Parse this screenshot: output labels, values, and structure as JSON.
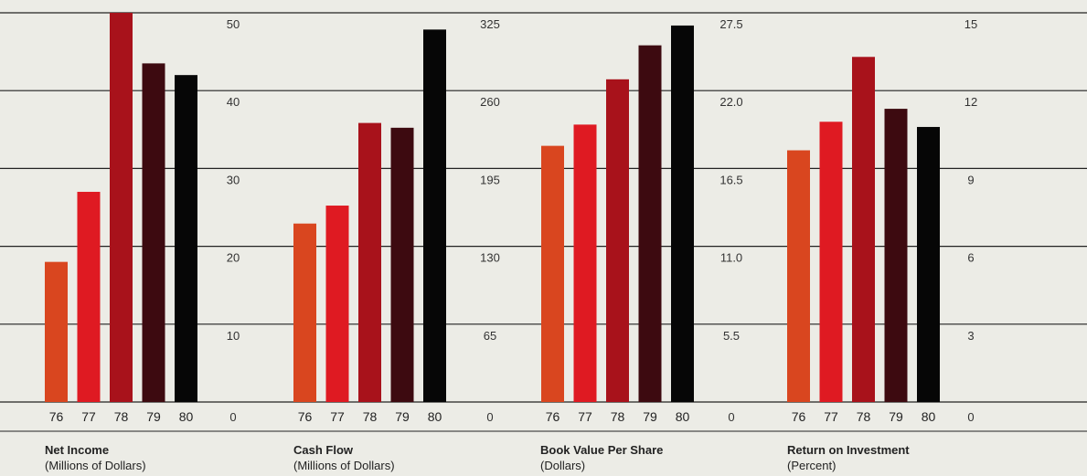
{
  "colors": {
    "background": "#ecece6",
    "gridline": "#222222",
    "year_colors": [
      "#d9461f",
      "#df1a22",
      "#a8121b",
      "#3d0a10",
      "#060606"
    ]
  },
  "chart_data": [
    {
      "type": "bar",
      "title": "Net Income",
      "subtitle": "(Millions of Dollars)",
      "categories": [
        "76",
        "77",
        "78",
        "79",
        "80"
      ],
      "values": [
        18,
        27,
        50,
        43.5,
        42
      ],
      "yticks": [
        "0",
        "10",
        "20",
        "30",
        "40",
        "50"
      ],
      "ylim": [
        0,
        50
      ]
    },
    {
      "type": "bar",
      "title": "Cash Flow",
      "subtitle": "(Millions of Dollars)",
      "categories": [
        "76",
        "77",
        "78",
        "79",
        "80"
      ],
      "values": [
        149,
        164,
        233,
        229,
        311
      ],
      "yticks": [
        "0",
        "65",
        "130",
        "195",
        "260",
        "325"
      ],
      "ylim": [
        0,
        325
      ]
    },
    {
      "type": "bar",
      "title": "Book Value Per Share",
      "subtitle": "(Dollars)",
      "categories": [
        "76",
        "77",
        "78",
        "79",
        "80"
      ],
      "values": [
        18.1,
        19.6,
        22.8,
        25.2,
        26.6
      ],
      "yticks": [
        "0",
        "5.5",
        "11.0",
        "16.5",
        "22.0",
        "27.5"
      ],
      "ylim": [
        0,
        27.5
      ]
    },
    {
      "type": "bar",
      "title": "Return on Investment",
      "subtitle": "(Percent)",
      "categories": [
        "76",
        "77",
        "78",
        "79",
        "80"
      ],
      "values": [
        9.7,
        10.8,
        13.3,
        11.3,
        10.6
      ],
      "yticks": [
        "0",
        "3",
        "6",
        "9",
        "12",
        "15"
      ],
      "ylim": [
        0,
        15
      ]
    }
  ]
}
